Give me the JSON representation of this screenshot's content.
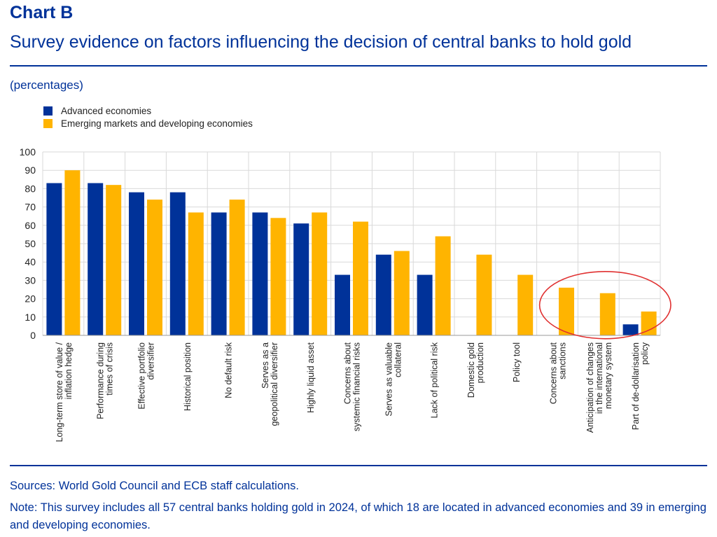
{
  "header": {
    "chart_label": "Chart B",
    "title": "Survey evidence on factors influencing the decision of central banks to hold gold",
    "units": "(percentages)"
  },
  "colors": {
    "advanced": "#003299",
    "emerging": "#FFB400",
    "grid": "#d9d9d9",
    "highlight": "#e03030"
  },
  "chart_data": {
    "type": "bar",
    "ylim": [
      0,
      100
    ],
    "yticks": [
      0,
      10,
      20,
      30,
      40,
      50,
      60,
      70,
      80,
      90,
      100
    ],
    "grid": true,
    "legend_position": "top-left",
    "categories": [
      [
        "Long-term store of value /",
        "inflation hedge"
      ],
      [
        "Performance during",
        "times of crisis"
      ],
      [
        "Effective portfolio",
        "diversifier"
      ],
      [
        "Historical position"
      ],
      [
        "No default risk"
      ],
      [
        "Serves as a",
        "geopolitical diversifier"
      ],
      [
        "Highly liquid asset"
      ],
      [
        "Concerns about",
        "systemic financial risks"
      ],
      [
        "Serves as valuable",
        "collateral"
      ],
      [
        "Lack of political risk"
      ],
      [
        "Domestic gold",
        "production"
      ],
      [
        "Policy tool"
      ],
      [
        "Concerns about",
        "sanctions"
      ],
      [
        "Anticipation of changes",
        "in the international",
        "monetary system"
      ],
      [
        "Part of de-dollarisation",
        "policy"
      ]
    ],
    "series": [
      {
        "name": "Advanced economies",
        "color": "#003299",
        "values": [
          83,
          83,
          78,
          78,
          67,
          67,
          61,
          33,
          44,
          33,
          0,
          0,
          0,
          0,
          6
        ]
      },
      {
        "name": "Emerging markets and developing economies",
        "color": "#FFB400",
        "values": [
          90,
          82,
          74,
          67,
          74,
          64,
          67,
          62,
          46,
          54,
          44,
          33,
          26,
          23,
          13
        ]
      }
    ],
    "highlight": {
      "categories": [
        12,
        13,
        14
      ],
      "shape": "ellipse"
    }
  },
  "footer": {
    "sources": "Sources: World Gold Council and ECB staff calculations.",
    "note": "Note: This survey includes all 57 central banks holding gold in 2024, of which 18 are located in advanced economies and 39 in emerging and developing economies."
  }
}
